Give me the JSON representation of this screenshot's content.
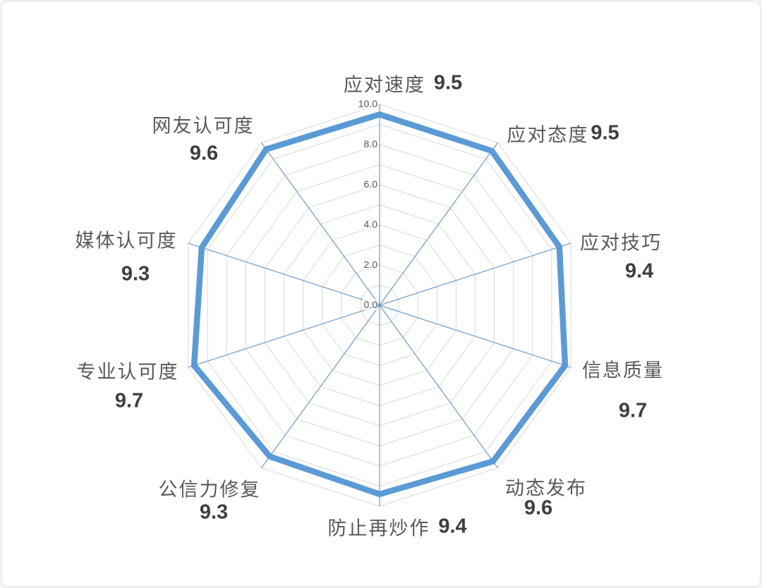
{
  "frame": {
    "background": "#ffffff",
    "border_color": "#ececec"
  },
  "chart_data": {
    "type": "radar",
    "categories": [
      "应对速度",
      "应对态度",
      "应对技巧",
      "信息质量",
      "动态发布",
      "防止再炒作",
      "公信力修复",
      "专业认可度",
      "媒体认可度",
      "网友认可度"
    ],
    "values": [
      9.5,
      9.5,
      9.4,
      9.7,
      9.6,
      9.4,
      9.3,
      9.7,
      9.3,
      9.6
    ],
    "value_labels": [
      "9.5",
      "9.5",
      "9.4",
      "9.7",
      "9.6",
      "9.4",
      "9.3",
      "9.7",
      "9.3",
      "9.6"
    ],
    "axis_range": [
      0,
      10
    ],
    "axis_tick_labels": [
      "0.0",
      "2.0",
      "4.0",
      "6.0",
      "8.0",
      "10.0"
    ],
    "tick_label_interval": 2,
    "ring_interval": 1,
    "grid": true,
    "legend_position": "none",
    "title": "",
    "colors": {
      "series": "#5b9bd5",
      "ring": "#d9d9d9",
      "spoke": "#6e9bc9",
      "tick_text": "#595959",
      "category_text": "#595959",
      "value_text": "#3f3f3f"
    }
  }
}
